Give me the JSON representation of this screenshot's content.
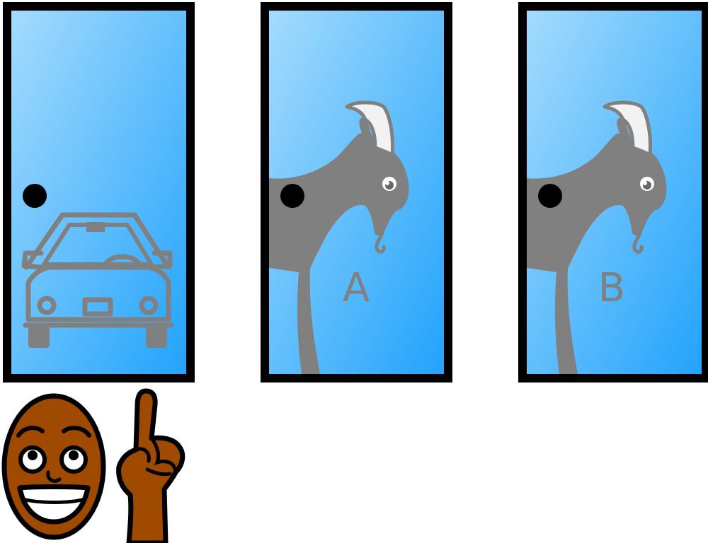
{
  "doors": [
    {
      "content": "car",
      "label": ""
    },
    {
      "content": "goat",
      "label": "A"
    },
    {
      "content": "goat",
      "label": "B"
    }
  ],
  "colors": {
    "door_top": "#a6dcfd",
    "door_bottom": "#20a2fc",
    "frame": "#000000",
    "figure_gray": "#808080",
    "horn": "#f2f2f2",
    "skin": "#a04a00"
  },
  "host": {
    "face_icon": "smiling-face-icon",
    "hand_icon": "pointing-finger-icon"
  }
}
